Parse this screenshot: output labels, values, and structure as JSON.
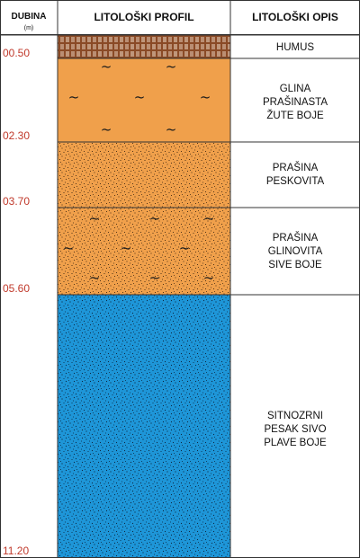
{
  "header": {
    "depth_title": "DUBINA",
    "depth_unit": "(m)",
    "profile_title": "LITOLOŠKI PROFIL",
    "description_title": "LITOLOŠKI OPIS"
  },
  "colors": {
    "humus": "#8a4a26",
    "clay_silt": "#f0a04b",
    "sand": "#1e96d8",
    "depth_text": "#c0392b",
    "grid": "#333333"
  },
  "layers": [
    {
      "bottom_label": "00.50",
      "bottom_depth": 0.5,
      "pattern": "humus-hatch",
      "fill": "#8a4a26",
      "description": [
        "HUMUS"
      ]
    },
    {
      "bottom_label": "02.30",
      "bottom_depth": 2.3,
      "pattern": "clay-tilde",
      "fill": "#f0a04b",
      "description": [
        "GLINA",
        "PRAŠINASTA",
        "ŽUTE BOJE"
      ]
    },
    {
      "bottom_label": "03.70",
      "bottom_depth": 3.7,
      "pattern": "silt-dots",
      "fill": "#f0a04b",
      "description": [
        "PRAŠINA",
        "PESKOVITA"
      ]
    },
    {
      "bottom_label": "05.60",
      "bottom_depth": 5.6,
      "pattern": "dots-tilde",
      "fill": "#f0a04b",
      "description": [
        "PRAŠINA",
        "GLINOVITA",
        "SIVE BOJE"
      ]
    },
    {
      "bottom_label": "11.20",
      "bottom_depth": 11.2,
      "pattern": "sand-dots",
      "fill": "#1e96d8",
      "description": [
        "SITNOZRNI",
        "PESAK SIVO",
        "PLAVE BOJE"
      ]
    }
  ]
}
